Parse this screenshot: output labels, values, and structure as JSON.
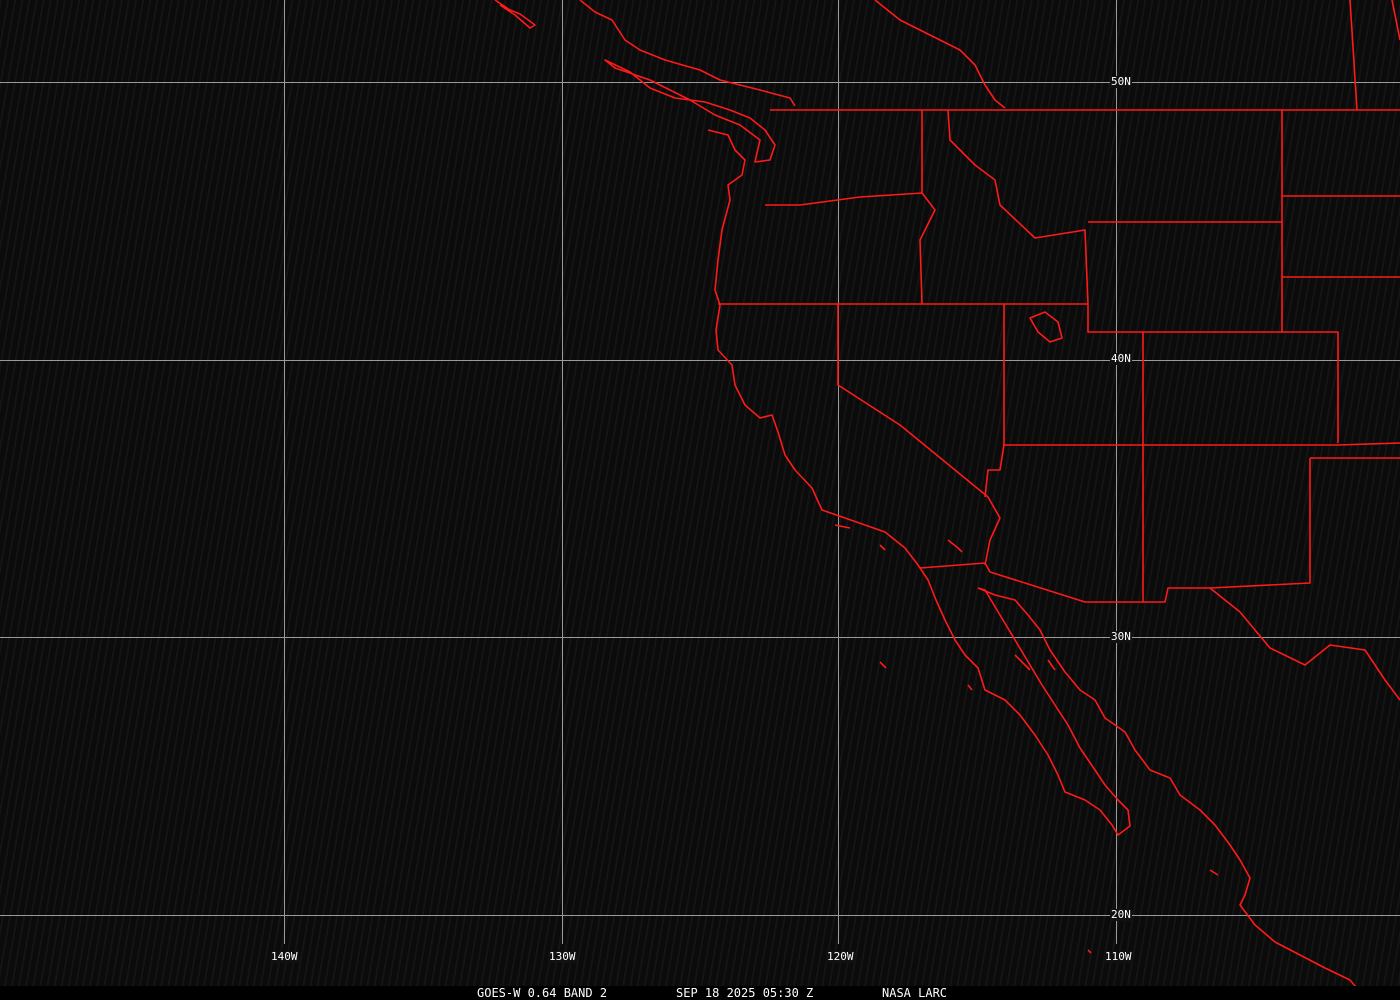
{
  "colors": {
    "background": "#0b0b0b",
    "grid": "#9a9a9a",
    "boundaries": "#ff1a1a",
    "text": "#ffffff"
  },
  "grid": {
    "longitude_labels": [
      "140W",
      "130W",
      "120W",
      "110W"
    ],
    "latitude_labels": [
      "50N",
      "40N",
      "30N",
      "20N"
    ]
  },
  "caption": {
    "product": "GOES-W 0.64 BAND 2",
    "datetime": "SEP 18 2025 05:30 Z",
    "source": "NASA LARC"
  }
}
